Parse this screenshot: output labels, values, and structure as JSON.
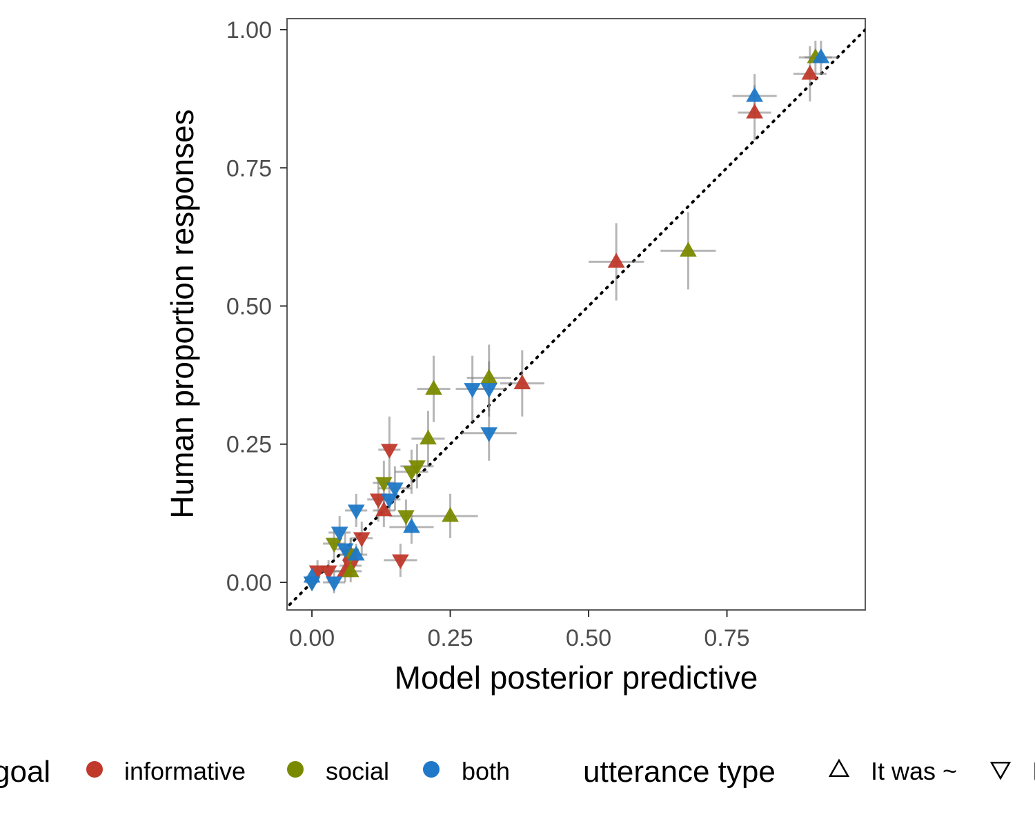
{
  "chart_data": {
    "type": "scatter",
    "title": "",
    "xlabel": "Model posterior predictive",
    "ylabel": "Human proportion responses",
    "xlim": [
      -0.045,
      1.0
    ],
    "ylim": [
      -0.05,
      1.02
    ],
    "x_ticks": [
      "0.00",
      "0.25",
      "0.50",
      "0.75"
    ],
    "x_tick_values": [
      0,
      0.25,
      0.5,
      0.75
    ],
    "y_ticks": [
      "0.00",
      "0.25",
      "0.50",
      "0.75",
      "1.00"
    ],
    "y_tick_values": [
      0,
      0.25,
      0.5,
      0.75,
      1.0
    ],
    "grid": false,
    "reference_line": "dotted identity line (y = x)",
    "legend_placement": "bottom",
    "legends": [
      {
        "title": "goal",
        "entries": [
          {
            "label": "informative",
            "color": "#c0392b"
          },
          {
            "label": "social",
            "color": "#7a8a00"
          },
          {
            "label": "both",
            "color": "#1f78c8"
          }
        ]
      },
      {
        "title": "utterance type",
        "entries": [
          {
            "label": "It was ~",
            "shape": "triangle-up"
          },
          {
            "label": "It wasn't ~",
            "shape": "triangle-down"
          }
        ]
      }
    ],
    "series": [
      {
        "name": "informative",
        "color": "#c0392b",
        "points": [
          {
            "x": 0.9,
            "y": 0.92,
            "xerr": 0.03,
            "yerr": 0.05,
            "shape": "up"
          },
          {
            "x": 0.8,
            "y": 0.85,
            "xerr": 0.03,
            "yerr": 0.05,
            "shape": "up"
          },
          {
            "x": 0.55,
            "y": 0.58,
            "xerr": 0.05,
            "yerr": 0.07,
            "shape": "up"
          },
          {
            "x": 0.38,
            "y": 0.36,
            "xerr": 0.04,
            "yerr": 0.06,
            "shape": "up"
          },
          {
            "x": 0.14,
            "y": 0.24,
            "xerr": 0.02,
            "yerr": 0.06,
            "shape": "down"
          },
          {
            "x": 0.12,
            "y": 0.15,
            "xerr": 0.02,
            "yerr": 0.04,
            "shape": "down"
          },
          {
            "x": 0.13,
            "y": 0.13,
            "xerr": 0.02,
            "yerr": 0.03,
            "shape": "up"
          },
          {
            "x": 0.16,
            "y": 0.04,
            "xerr": 0.03,
            "yerr": 0.03,
            "shape": "down"
          },
          {
            "x": 0.09,
            "y": 0.08,
            "xerr": 0.02,
            "yerr": 0.03,
            "shape": "down"
          },
          {
            "x": 0.07,
            "y": 0.05,
            "xerr": 0.02,
            "yerr": 0.03,
            "shape": "up"
          },
          {
            "x": 0.06,
            "y": 0.02,
            "xerr": 0.02,
            "yerr": 0.02,
            "shape": "up"
          },
          {
            "x": 0.03,
            "y": 0.02,
            "xerr": 0.02,
            "yerr": 0.02,
            "shape": "down"
          },
          {
            "x": 0.01,
            "y": 0.02,
            "xerr": 0.01,
            "yerr": 0.02,
            "shape": "down"
          },
          {
            "x": 0.07,
            "y": 0.03,
            "xerr": 0.02,
            "yerr": 0.02,
            "shape": "down"
          }
        ]
      },
      {
        "name": "social",
        "color": "#7a8a00",
        "points": [
          {
            "x": 0.91,
            "y": 0.95,
            "xerr": 0.03,
            "yerr": 0.03,
            "shape": "up"
          },
          {
            "x": 0.68,
            "y": 0.6,
            "xerr": 0.05,
            "yerr": 0.07,
            "shape": "up"
          },
          {
            "x": 0.32,
            "y": 0.37,
            "xerr": 0.04,
            "yerr": 0.06,
            "shape": "up"
          },
          {
            "x": 0.22,
            "y": 0.35,
            "xerr": 0.03,
            "yerr": 0.06,
            "shape": "up"
          },
          {
            "x": 0.21,
            "y": 0.26,
            "xerr": 0.03,
            "yerr": 0.05,
            "shape": "up"
          },
          {
            "x": 0.19,
            "y": 0.21,
            "xerr": 0.03,
            "yerr": 0.04,
            "shape": "down"
          },
          {
            "x": 0.18,
            "y": 0.2,
            "xerr": 0.03,
            "yerr": 0.04,
            "shape": "down"
          },
          {
            "x": 0.13,
            "y": 0.18,
            "xerr": 0.02,
            "yerr": 0.04,
            "shape": "down"
          },
          {
            "x": 0.25,
            "y": 0.12,
            "xerr": 0.05,
            "yerr": 0.04,
            "shape": "up"
          },
          {
            "x": 0.17,
            "y": 0.12,
            "xerr": 0.03,
            "yerr": 0.03,
            "shape": "down"
          },
          {
            "x": 0.04,
            "y": 0.07,
            "xerr": 0.02,
            "yerr": 0.03,
            "shape": "down"
          },
          {
            "x": 0.07,
            "y": 0.05,
            "xerr": 0.02,
            "yerr": 0.03,
            "shape": "down"
          },
          {
            "x": 0.07,
            "y": 0.02,
            "xerr": 0.02,
            "yerr": 0.02,
            "shape": "up"
          },
          {
            "x": 0.0,
            "y": 0.0,
            "xerr": 0.01,
            "yerr": 0.01,
            "shape": "down"
          }
        ]
      },
      {
        "name": "both",
        "color": "#1f78c8",
        "points": [
          {
            "x": 0.92,
            "y": 0.95,
            "xerr": 0.03,
            "yerr": 0.03,
            "shape": "up"
          },
          {
            "x": 0.8,
            "y": 0.88,
            "xerr": 0.04,
            "yerr": 0.04,
            "shape": "up"
          },
          {
            "x": 0.29,
            "y": 0.35,
            "xerr": 0.03,
            "yerr": 0.06,
            "shape": "down"
          },
          {
            "x": 0.32,
            "y": 0.35,
            "xerr": 0.03,
            "yerr": 0.05,
            "shape": "down"
          },
          {
            "x": 0.32,
            "y": 0.27,
            "xerr": 0.05,
            "yerr": 0.05,
            "shape": "down"
          },
          {
            "x": 0.15,
            "y": 0.17,
            "xerr": 0.03,
            "yerr": 0.04,
            "shape": "down"
          },
          {
            "x": 0.14,
            "y": 0.15,
            "xerr": 0.02,
            "yerr": 0.03,
            "shape": "down"
          },
          {
            "x": 0.18,
            "y": 0.1,
            "xerr": 0.04,
            "yerr": 0.03,
            "shape": "up"
          },
          {
            "x": 0.08,
            "y": 0.13,
            "xerr": 0.02,
            "yerr": 0.03,
            "shape": "down"
          },
          {
            "x": 0.05,
            "y": 0.09,
            "xerr": 0.02,
            "yerr": 0.03,
            "shape": "down"
          },
          {
            "x": 0.06,
            "y": 0.06,
            "xerr": 0.02,
            "yerr": 0.03,
            "shape": "down"
          },
          {
            "x": 0.08,
            "y": 0.05,
            "xerr": 0.02,
            "yerr": 0.02,
            "shape": "up"
          },
          {
            "x": 0.04,
            "y": 0.0,
            "xerr": 0.02,
            "yerr": 0.02,
            "shape": "down"
          },
          {
            "x": 0.0,
            "y": 0.01,
            "xerr": 0.01,
            "yerr": 0.01,
            "shape": "up"
          },
          {
            "x": 0.0,
            "y": 0.0,
            "xerr": 0.01,
            "yerr": 0.01,
            "shape": "down"
          }
        ]
      }
    ]
  }
}
